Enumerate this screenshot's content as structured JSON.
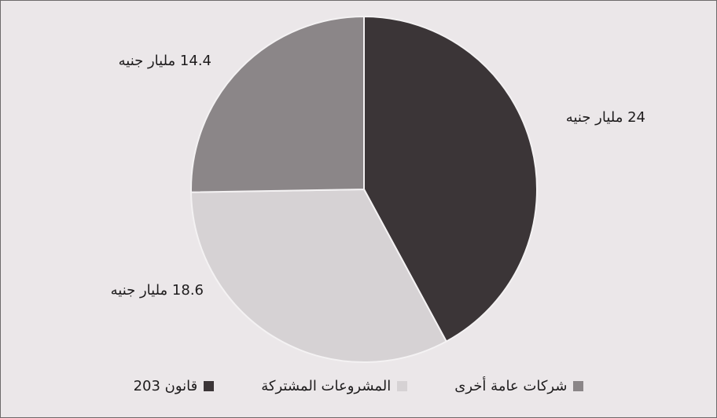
{
  "chart_data": {
    "type": "pie",
    "categories": [
      "قانون 203",
      "المشروعات المشتركة",
      "شركات عامة أخرى"
    ],
    "values": [
      24,
      18.6,
      14.4
    ],
    "value_labels": [
      "24 مليار جنيه",
      "18.6 مليار جنيه",
      "14.4 مليار جنيه"
    ],
    "colors": [
      "#3b3537",
      "#d6d2d4",
      "#8b8688"
    ]
  }
}
